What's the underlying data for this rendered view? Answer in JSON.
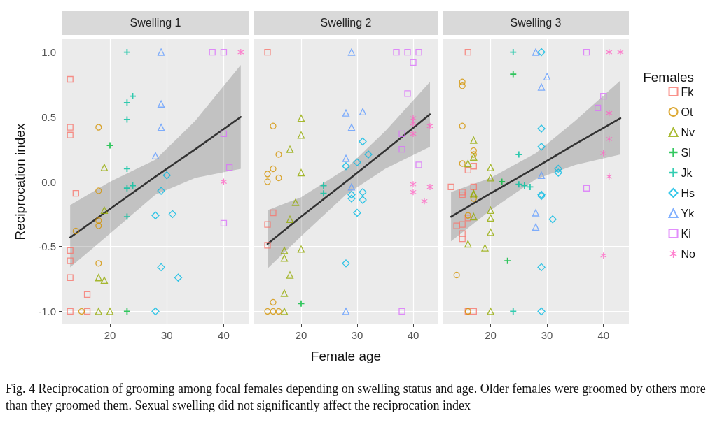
{
  "chart_data": [
    {
      "type": "scatter",
      "title": "Swelling 1",
      "ylabel": "Reciprocation index",
      "xlim": [
        11.5,
        44.5
      ],
      "ylim": [
        -1.1,
        1.1
      ],
      "xticks": [
        20,
        30,
        40
      ],
      "yticks": [
        {
          "value": -1,
          "label": "-1.0"
        },
        {
          "value": -0.5,
          "label": "-0.5"
        },
        {
          "value": 0,
          "label": "0.0"
        },
        {
          "value": 0.5,
          "label": "0.5"
        },
        {
          "value": 1,
          "label": "1.0"
        }
      ],
      "grid": true,
      "legend": false,
      "annotations": [
        "Fig. 4  Reciprocation of grooming among focal females depending on swelling status and age. Older females were groomed by others more than they groomed them. Sexual swelling did not significantly affect the reciprocation index"
      ],
      "series": [
        {
          "color": "#f8766d",
          "marker": "square",
          "x": [
            13,
            13,
            13,
            13,
            13,
            13,
            13,
            14,
            16,
            16
          ],
          "values": [
            0.79,
            0.42,
            0.36,
            -0.53,
            -0.61,
            -0.74,
            -1.0,
            -0.09,
            -0.87,
            -1.0
          ]
        },
        {
          "color": "#d39200",
          "marker": "circle",
          "x": [
            18,
            18,
            18,
            18,
            15,
            14,
            18
          ],
          "values": [
            0.42,
            -0.07,
            -0.34,
            -0.63,
            -1.0,
            -0.38,
            -0.3
          ]
        },
        {
          "color": "#93aa00",
          "marker": "triangle",
          "x": [
            19,
            19,
            18,
            19,
            18,
            20
          ],
          "values": [
            0.11,
            -0.22,
            -0.74,
            -0.76,
            -1.0,
            -1.0
          ]
        },
        {
          "color": "#00ba38",
          "marker": "cross",
          "x": [
            20,
            23
          ],
          "values": [
            0.28,
            -1.0
          ]
        },
        {
          "color": "#00c19f",
          "marker": "cross",
          "x": [
            23,
            23,
            23,
            23,
            23,
            23,
            24,
            24
          ],
          "values": [
            1.0,
            0.61,
            0.48,
            0.1,
            -0.05,
            -0.27,
            0.66,
            -0.03
          ]
        },
        {
          "color": "#00b9e3",
          "marker": "diamond",
          "x": [
            30,
            29,
            28,
            31,
            29,
            32,
            28
          ],
          "values": [
            0.05,
            -0.07,
            -0.26,
            -0.25,
            -0.66,
            -0.74,
            -1.0
          ]
        },
        {
          "color": "#619cff",
          "marker": "triangle",
          "x": [
            29,
            29,
            29,
            28
          ],
          "values": [
            1.0,
            0.6,
            0.42,
            0.2
          ]
        },
        {
          "color": "#db72fb",
          "marker": "square",
          "x": [
            38,
            40,
            40,
            41,
            40
          ],
          "values": [
            1.0,
            1.0,
            0.37,
            0.11,
            -0.32
          ]
        },
        {
          "color": "#ff61c3",
          "marker": "star",
          "x": [
            43,
            40
          ],
          "values": [
            1.0,
            0.0
          ]
        },
        {
          "type": "line",
          "color": "#333333",
          "x": [
            13,
            20,
            28,
            35,
            43
          ],
          "values": [
            -0.43,
            -0.21,
            0.04,
            0.25,
            0.5
          ],
          "lower": [
            -0.66,
            -0.4,
            -0.1,
            0.03,
            0.1
          ],
          "upper": [
            -0.18,
            0.0,
            0.17,
            0.47,
            0.9
          ]
        }
      ]
    },
    {
      "type": "scatter",
      "title": "Swelling 2",
      "xlabel": "Female age",
      "xlim": [
        11.5,
        44.5
      ],
      "ylim": [
        -1.1,
        1.1
      ],
      "xticks": [
        20,
        30,
        40
      ],
      "yticks": [
        -1,
        -0.5,
        0,
        0.5,
        1
      ],
      "tick_labels": "x",
      "grid": true,
      "legend": false,
      "series": [
        {
          "color": "#f8766d",
          "marker": "square",
          "x": [
            14,
            15,
            14,
            14
          ],
          "values": [
            1.0,
            -0.24,
            -0.33,
            -0.49
          ]
        },
        {
          "color": "#d39200",
          "marker": "circle",
          "x": [
            15,
            16,
            15,
            14,
            14,
            16,
            15,
            14,
            15,
            16
          ],
          "values": [
            0.43,
            0.21,
            0.1,
            0.06,
            0.0,
            0.03,
            -0.93,
            -1.0,
            -1.0,
            -1.0
          ]
        },
        {
          "color": "#93aa00",
          "marker": "triangle",
          "x": [
            20,
            20,
            18,
            20,
            19,
            18,
            20,
            17,
            17,
            18,
            17,
            17
          ],
          "values": [
            0.49,
            0.36,
            0.25,
            0.07,
            -0.16,
            -0.29,
            -0.52,
            -0.53,
            -0.59,
            -0.72,
            -0.86,
            -1.0
          ]
        },
        {
          "color": "#00ba38",
          "marker": "cross",
          "x": [
            20
          ],
          "values": [
            -0.94
          ]
        },
        {
          "color": "#00c19f",
          "marker": "cross",
          "x": [
            24,
            24
          ],
          "values": [
            -0.03,
            -0.09
          ]
        },
        {
          "color": "#00b9e3",
          "marker": "diamond",
          "x": [
            31,
            30,
            32,
            28,
            29,
            29,
            31,
            31,
            30,
            28
          ],
          "values": [
            0.31,
            0.15,
            0.21,
            0.12,
            -0.1,
            -0.13,
            -0.08,
            -0.14,
            -0.24,
            -0.63
          ]
        },
        {
          "color": "#619cff",
          "marker": "triangle",
          "x": [
            29,
            28,
            31,
            29,
            28,
            29,
            28
          ],
          "values": [
            1.0,
            0.53,
            0.54,
            0.42,
            0.18,
            -0.04,
            -1.0
          ]
        },
        {
          "color": "#db72fb",
          "marker": "square",
          "x": [
            37,
            39,
            41,
            40,
            39,
            38,
            38,
            41,
            38
          ],
          "values": [
            1.0,
            1.0,
            1.0,
            0.92,
            0.68,
            0.37,
            0.25,
            0.13,
            -1.0
          ]
        },
        {
          "color": "#ff61c3",
          "marker": "star",
          "x": [
            40,
            40,
            40,
            43,
            40,
            40,
            43,
            42
          ],
          "values": [
            0.49,
            0.45,
            0.37,
            0.43,
            -0.02,
            -0.08,
            -0.04,
            -0.15
          ]
        },
        {
          "type": "line",
          "color": "#333333",
          "x": [
            14,
            20,
            28,
            35,
            43
          ],
          "values": [
            -0.48,
            -0.27,
            0.0,
            0.24,
            0.52
          ],
          "lower": [
            -0.67,
            -0.42,
            -0.1,
            0.1,
            0.27
          ],
          "upper": [
            -0.22,
            -0.12,
            0.1,
            0.39,
            0.77
          ]
        }
      ]
    },
    {
      "type": "scatter",
      "title": "Swelling 3",
      "legend_title": "Females",
      "xlim": [
        11.5,
        44.5
      ],
      "ylim": [
        -1.1,
        1.1
      ],
      "xticks": [
        20,
        30,
        40
      ],
      "yticks": [
        -1,
        -0.5,
        0,
        0.5,
        1
      ],
      "tick_labels": "x",
      "grid": true,
      "legend": "right",
      "series": [
        {
          "name": "Fk",
          "color": "#f8766d",
          "marker": "square",
          "x": [
            16,
            13,
            15,
            15,
            17,
            17,
            16,
            14,
            15,
            15,
            15,
            16,
            16,
            17
          ],
          "values": [
            1.0,
            -0.04,
            -0.08,
            -0.1,
            -0.04,
            0.12,
            0.09,
            -0.34,
            -0.33,
            -0.4,
            -0.44,
            -0.28,
            -1.0,
            -1.0
          ]
        },
        {
          "name": "Ot",
          "color": "#d39200",
          "marker": "circle",
          "x": [
            15,
            15,
            15,
            15,
            17,
            17,
            17,
            16,
            14,
            16
          ],
          "values": [
            0.77,
            0.74,
            0.43,
            0.14,
            0.24,
            0.21,
            -0.13,
            -0.26,
            -0.72,
            -1.0
          ]
        },
        {
          "name": "Nv",
          "color": "#93aa00",
          "marker": "triangle",
          "x": [
            17,
            17,
            16,
            20,
            20,
            17,
            17,
            20,
            20,
            17,
            20,
            16,
            19,
            20
          ],
          "values": [
            0.32,
            0.19,
            0.14,
            0.11,
            0.03,
            -0.09,
            -0.1,
            -0.22,
            -0.28,
            -0.27,
            -0.39,
            -0.48,
            -0.51,
            -1.0
          ]
        },
        {
          "name": "Sl",
          "color": "#00ba38",
          "marker": "cross",
          "x": [
            24,
            22,
            23
          ],
          "values": [
            0.83,
            0.0,
            -0.61
          ]
        },
        {
          "name": "Jk",
          "color": "#00c19f",
          "marker": "cross",
          "x": [
            24,
            25,
            25,
            26,
            27,
            24
          ],
          "values": [
            1.0,
            0.21,
            -0.02,
            -0.03,
            -0.04,
            -1.0
          ]
        },
        {
          "name": "Hs",
          "color": "#00b9e3",
          "marker": "diamond",
          "x": [
            29,
            29,
            29,
            32,
            32,
            29,
            29,
            31,
            29,
            29
          ],
          "values": [
            1.0,
            0.41,
            0.27,
            0.1,
            0.07,
            -0.1,
            -0.11,
            -0.29,
            -0.66,
            -1.0
          ]
        },
        {
          "name": "Yk",
          "color": "#619cff",
          "marker": "triangle",
          "x": [
            28,
            30,
            29,
            29,
            28,
            28
          ],
          "values": [
            1.0,
            0.81,
            0.73,
            0.05,
            -0.24,
            -0.35
          ]
        },
        {
          "name": "Ki",
          "color": "#db72fb",
          "marker": "square",
          "x": [
            37,
            40,
            39,
            37
          ],
          "values": [
            1.0,
            0.66,
            0.57,
            -0.05
          ]
        },
        {
          "name": "No",
          "color": "#ff61c3",
          "marker": "star",
          "x": [
            41,
            43,
            41,
            41,
            40,
            41,
            40
          ],
          "values": [
            1.0,
            1.0,
            0.53,
            0.33,
            0.22,
            0.04,
            -0.57
          ]
        },
        {
          "type": "line",
          "color": "#333333",
          "x": [
            13,
            20,
            28,
            35,
            43
          ],
          "values": [
            -0.27,
            -0.09,
            0.11,
            0.29,
            0.49
          ],
          "lower": [
            -0.46,
            -0.22,
            0.02,
            0.13,
            0.21
          ],
          "upper": [
            -0.08,
            0.03,
            0.22,
            0.47,
            0.78
          ]
        }
      ]
    }
  ]
}
